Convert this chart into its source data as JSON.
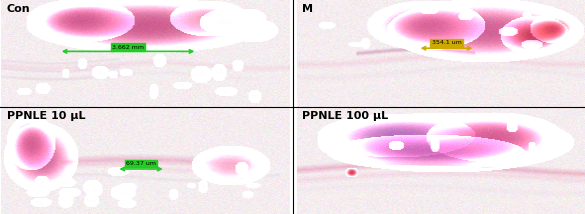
{
  "panels": [
    {
      "label": "Con",
      "label_fontsize": 8,
      "label_fontweight": "bold",
      "label_color": "black",
      "measurement": "3.662 mm",
      "meas_box_color": "#22cc22",
      "arrow_color": "#22cc22",
      "row": 0,
      "col": 0
    },
    {
      "label": "M",
      "label_fontsize": 8,
      "label_fontweight": "bold",
      "label_color": "black",
      "measurement": "354.1 um",
      "meas_box_color": "#ccaa00",
      "arrow_color": "#ccaa00",
      "row": 0,
      "col": 1
    },
    {
      "label": "PPNLE 10 μL",
      "label_fontsize": 8,
      "label_fontweight": "bold",
      "label_color": "black",
      "measurement": "69.37 um",
      "meas_box_color": "#22cc22",
      "arrow_color": "#22cc22",
      "row": 1,
      "col": 0
    },
    {
      "label": "PPNLE 100 μL",
      "label_fontsize": 8,
      "label_fontweight": "bold",
      "label_color": "black",
      "measurement": "",
      "meas_box_color": "#22cc22",
      "arrow_color": "#22cc22",
      "row": 1,
      "col": 1
    }
  ],
  "fig_width": 5.85,
  "fig_height": 2.14,
  "dpi": 100
}
